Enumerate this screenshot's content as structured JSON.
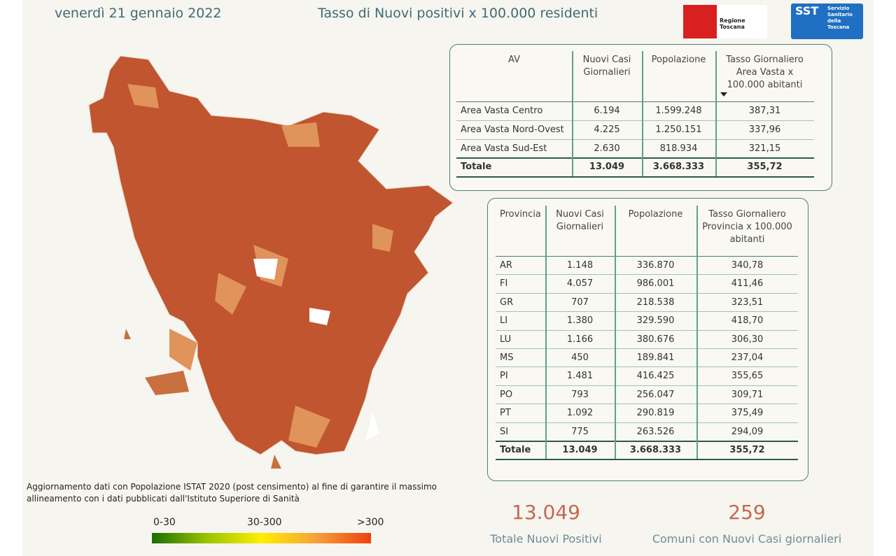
{
  "header": {
    "date": "venerdì 21 gennaio 2022",
    "title": "Tasso di Nuovi positivi x 100.000 residenti",
    "logo_region": "Regione Toscana",
    "logo_sst": "SST",
    "logo_sst_text": "Servizio Sanitario della Toscana"
  },
  "av_table": {
    "headers": [
      "AV",
      "Nuovi Casi Giornalieri",
      "Popolazione",
      "Tasso Giornaliero Area Vasta x 100.000 abitanti"
    ],
    "rows": [
      [
        "Area Vasta Centro",
        "6.194",
        "1.599.248",
        "387,31"
      ],
      [
        "Area Vasta Nord-Ovest",
        "4.225",
        "1.250.151",
        "337,96"
      ],
      [
        "Area Vasta Sud-Est",
        "2.630",
        "818.934",
        "321,15"
      ]
    ],
    "total": [
      "Totale",
      "13.049",
      "3.668.333",
      "355,72"
    ]
  },
  "province_table": {
    "headers": [
      "Provincia",
      "Nuovi Casi Giornalieri",
      "Popolazione",
      "Tasso Giornaliero Provincia x 100.000 abitanti"
    ],
    "rows": [
      [
        "AR",
        "1.148",
        "336.870",
        "340,78"
      ],
      [
        "FI",
        "4.057",
        "986.001",
        "411,46"
      ],
      [
        "GR",
        "707",
        "218.538",
        "323,51"
      ],
      [
        "LI",
        "1.380",
        "329.590",
        "418,70"
      ],
      [
        "LU",
        "1.166",
        "380.676",
        "306,30"
      ],
      [
        "MS",
        "450",
        "189.841",
        "237,04"
      ],
      [
        "PI",
        "1.481",
        "416.425",
        "355,65"
      ],
      [
        "PO",
        "793",
        "256.047",
        "309,71"
      ],
      [
        "PT",
        "1.092",
        "290.819",
        "375,49"
      ],
      [
        "SI",
        "775",
        "263.526",
        "294,09"
      ]
    ],
    "total": [
      "Totale",
      "13.049",
      "3.668.333",
      "355,72"
    ]
  },
  "note": "Aggiornamento dati con Popolazione ISTAT 2020 (post censimento) al fine di garantire il massimo allineamento con i dati pubblicati dall'Istituto Superiore di Sanità",
  "legend": [
    "0-30",
    "30-300",
    ">300"
  ],
  "kpis": [
    {
      "value": "13.049",
      "label": "Totale Nuovi Positivi"
    },
    {
      "value": "259",
      "label": "Comuni con Nuovi Casi giornalieri"
    }
  ]
}
